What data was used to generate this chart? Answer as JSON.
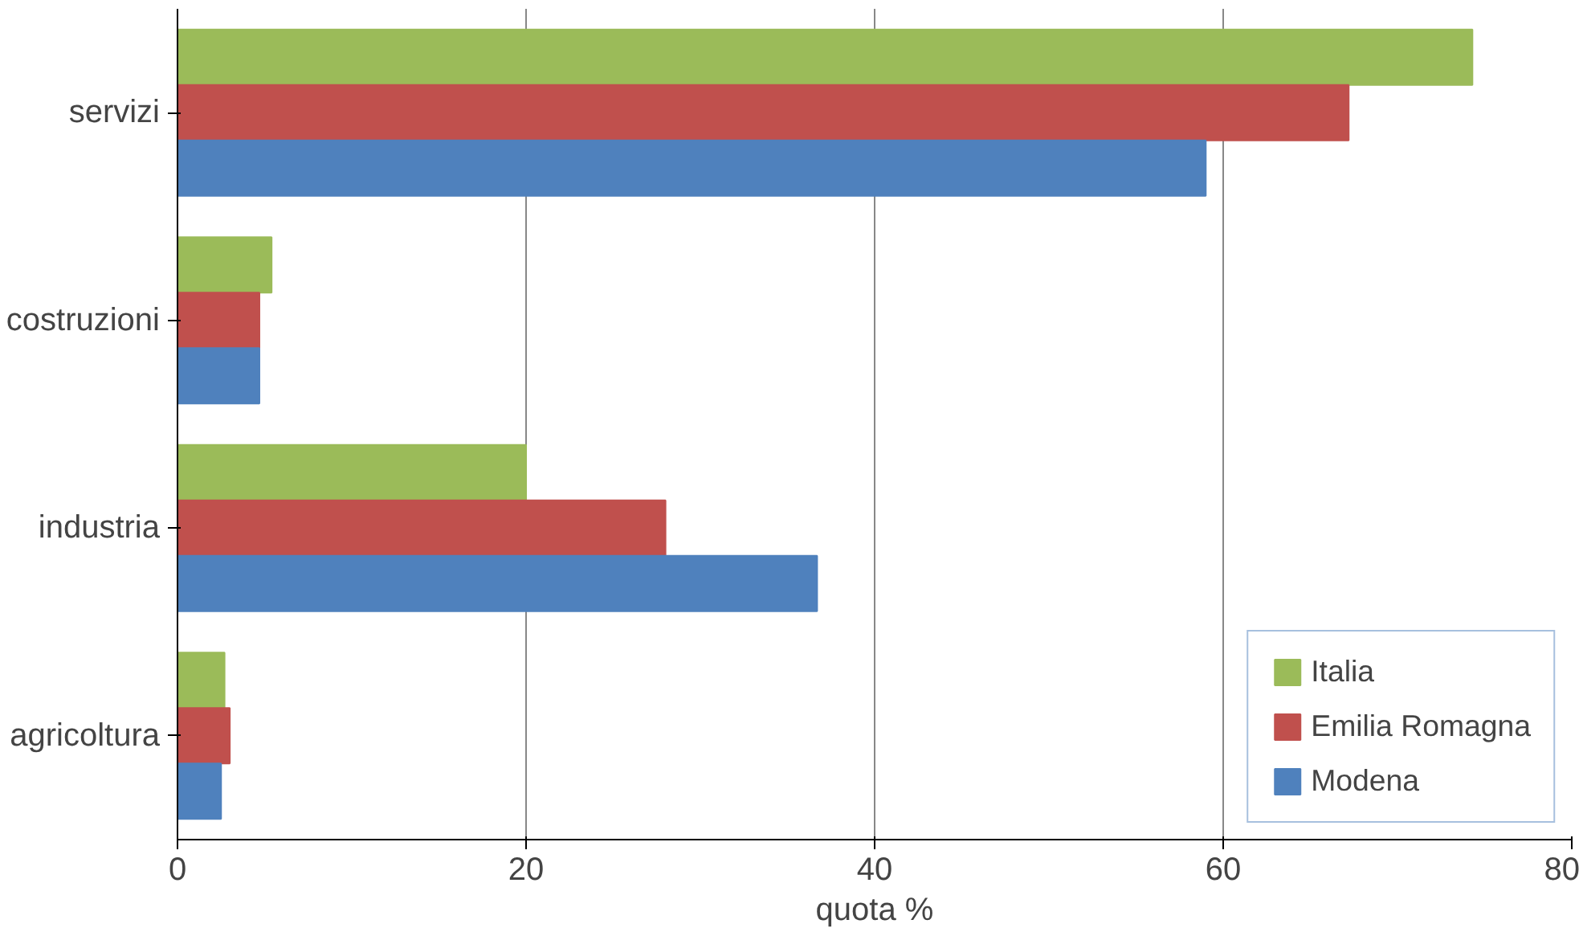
{
  "chart_data": {
    "type": "bar",
    "orientation": "horizontal",
    "xlabel": "quota %",
    "categories": [
      "servizi",
      "costruzioni",
      "industria",
      "agricoltura"
    ],
    "series": [
      {
        "name": "Italia",
        "color": "#9bbb59",
        "values": [
          74.3,
          5.4,
          20.0,
          2.7
        ]
      },
      {
        "name": "Emilia Romagna",
        "color": "#c0504d",
        "values": [
          67.2,
          4.7,
          28.0,
          3.0
        ]
      },
      {
        "name": "Modena",
        "color": "#4f81bd",
        "values": [
          59.0,
          4.7,
          36.7,
          2.5
        ]
      }
    ],
    "xlim": [
      0,
      80
    ],
    "xticks": [
      0,
      20,
      40,
      60,
      80
    ],
    "grid": "x",
    "legend": "bottom right"
  }
}
